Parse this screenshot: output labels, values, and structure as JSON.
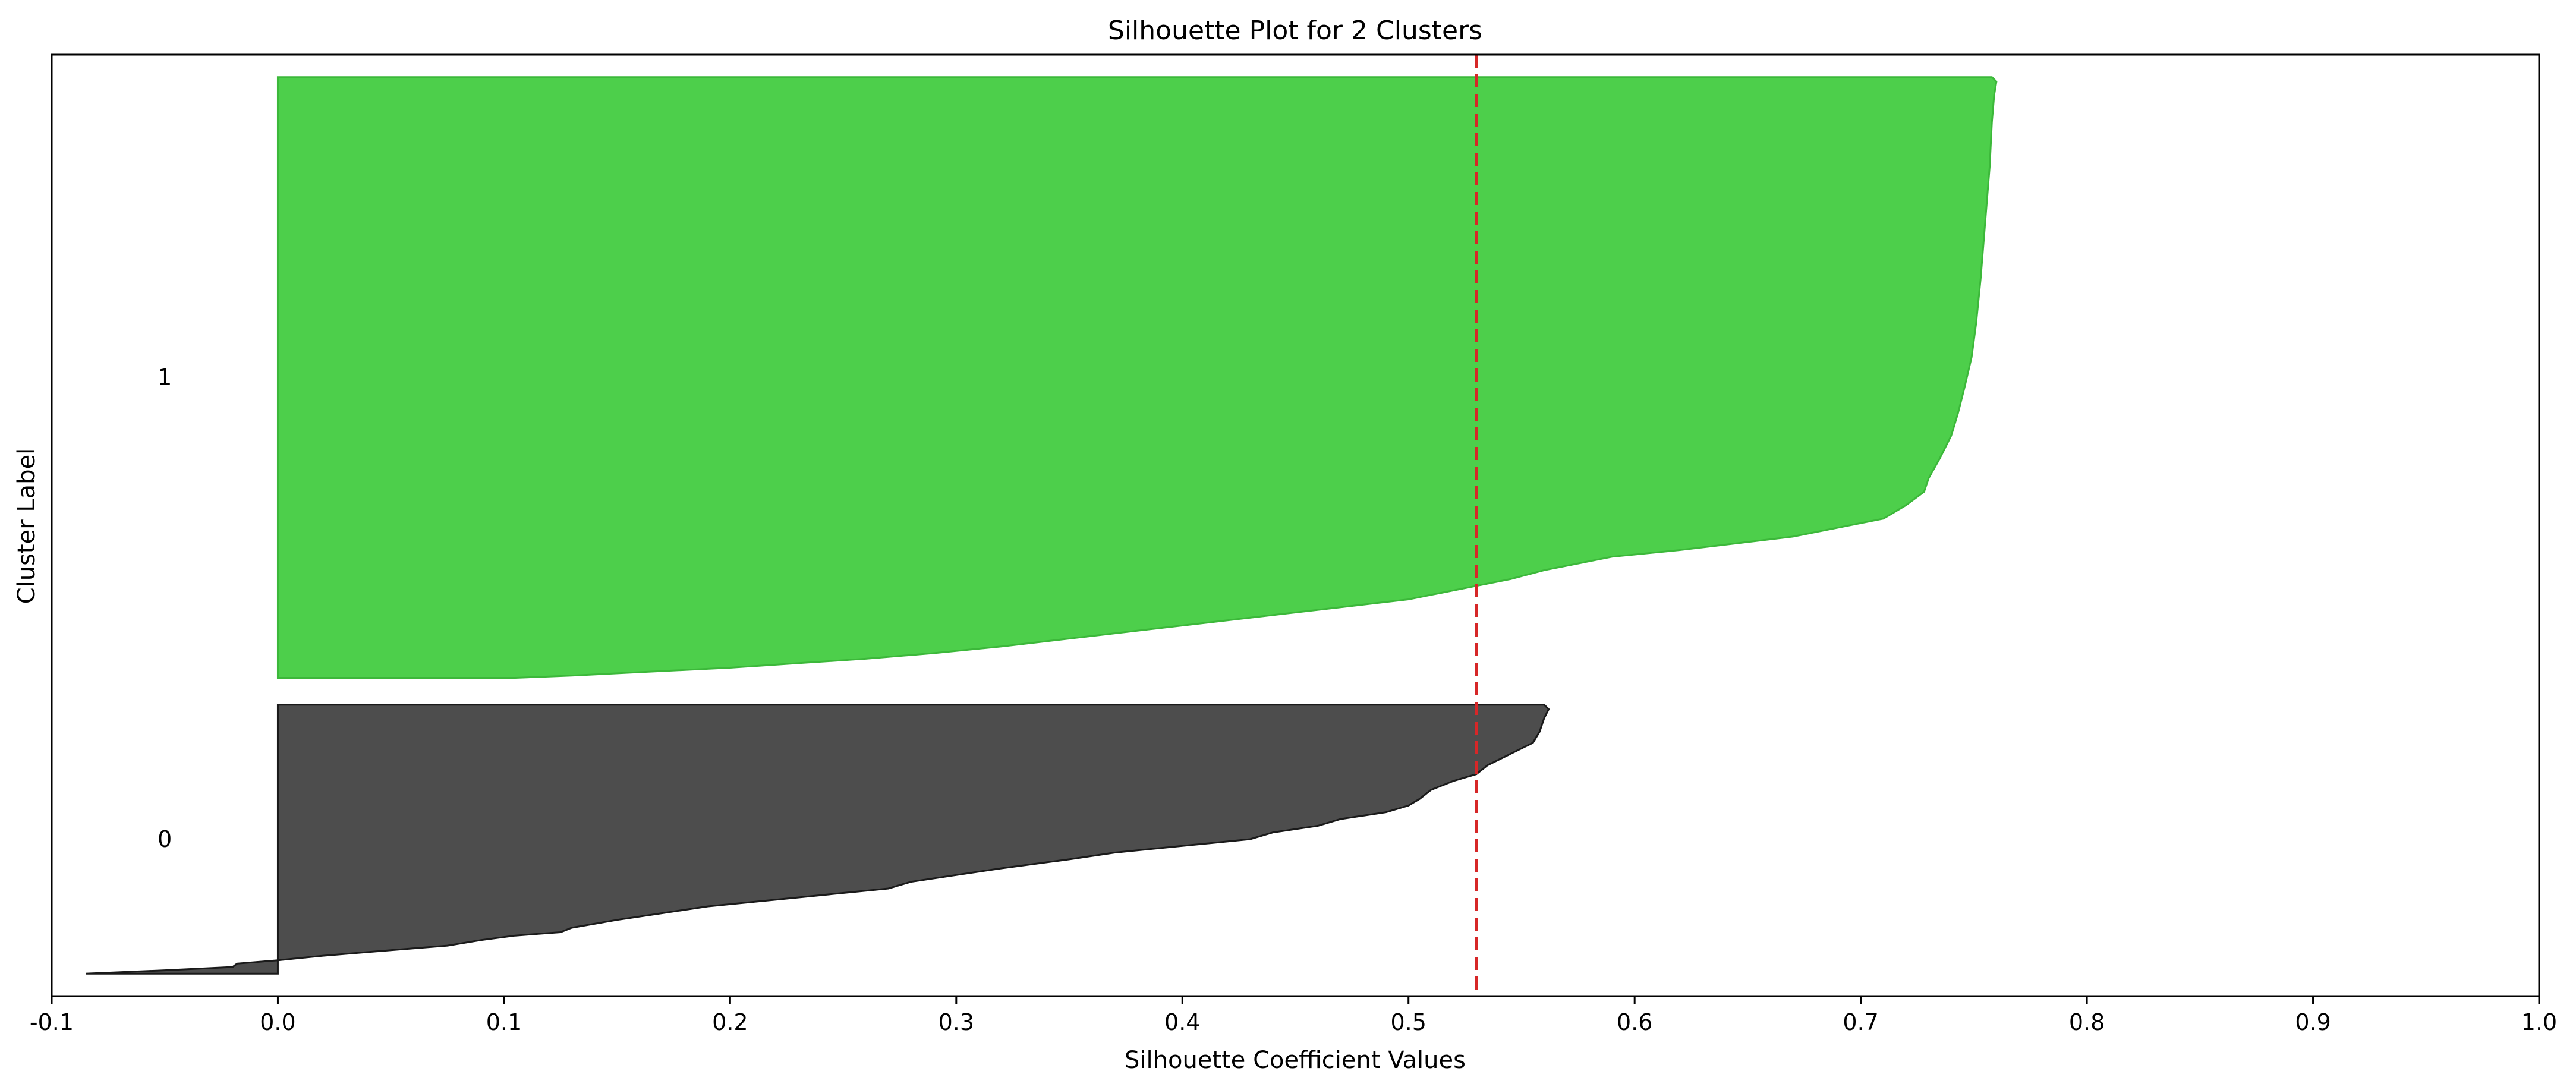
{
  "chart_data": {
    "type": "area",
    "title": "Silhouette Plot for 2 Clusters",
    "xlabel": "Silhouette Coefficient Values",
    "ylabel": "Cluster Label",
    "xlim": [
      -0.1,
      1.0
    ],
    "ylim": [
      0,
      420
    ],
    "x_ticks": [
      "-0.1",
      "0.0",
      "0.1",
      "0.2",
      "0.3",
      "0.4",
      "0.5",
      "0.6",
      "0.7",
      "0.8",
      "0.9",
      "1.0"
    ],
    "grid": false,
    "average_silhouette": 0.53,
    "average_line_color": "#d62728",
    "series": [
      {
        "label": "0",
        "color": "#4d4d4d",
        "edge_color": "#1a1a1a",
        "y_range": [
          10,
          130
        ],
        "points": [
          [
            -0.085,
            10
          ],
          [
            -0.05,
            11.5
          ],
          [
            -0.02,
            13
          ],
          [
            -0.018,
            14.5
          ],
          [
            0.0,
            16
          ],
          [
            0.02,
            18
          ],
          [
            0.05,
            20.5
          ],
          [
            0.075,
            22.5
          ],
          [
            0.09,
            25
          ],
          [
            0.105,
            27
          ],
          [
            0.125,
            28.5
          ],
          [
            0.13,
            30.5
          ],
          [
            0.15,
            34
          ],
          [
            0.17,
            37
          ],
          [
            0.19,
            40
          ],
          [
            0.21,
            42
          ],
          [
            0.23,
            44
          ],
          [
            0.25,
            46
          ],
          [
            0.27,
            48
          ],
          [
            0.28,
            51
          ],
          [
            0.3,
            54
          ],
          [
            0.32,
            57
          ],
          [
            0.35,
            61
          ],
          [
            0.37,
            64
          ],
          [
            0.4,
            67
          ],
          [
            0.43,
            70
          ],
          [
            0.44,
            73
          ],
          [
            0.46,
            76
          ],
          [
            0.47,
            79
          ],
          [
            0.49,
            82
          ],
          [
            0.5,
            85
          ],
          [
            0.505,
            88
          ],
          [
            0.51,
            92
          ],
          [
            0.52,
            96
          ],
          [
            0.53,
            99
          ],
          [
            0.535,
            103
          ],
          [
            0.545,
            108
          ],
          [
            0.555,
            113
          ],
          [
            0.558,
            118
          ],
          [
            0.56,
            124
          ],
          [
            0.562,
            128
          ],
          [
            0.56,
            130
          ]
        ]
      },
      {
        "label": "1",
        "color": "#4dcf4b",
        "edge_color": "#3cb83a",
        "y_range": [
          142,
          410
        ],
        "points": [
          [
            0.105,
            142
          ],
          [
            0.13,
            143
          ],
          [
            0.16,
            144.5
          ],
          [
            0.2,
            146.5
          ],
          [
            0.23,
            148.5
          ],
          [
            0.26,
            150.5
          ],
          [
            0.29,
            153
          ],
          [
            0.32,
            156
          ],
          [
            0.35,
            159.5
          ],
          [
            0.38,
            163
          ],
          [
            0.41,
            166.5
          ],
          [
            0.44,
            170
          ],
          [
            0.47,
            173.5
          ],
          [
            0.5,
            177
          ],
          [
            0.515,
            180
          ],
          [
            0.53,
            183
          ],
          [
            0.545,
            186
          ],
          [
            0.56,
            190
          ],
          [
            0.575,
            193
          ],
          [
            0.59,
            196
          ],
          [
            0.62,
            199
          ],
          [
            0.645,
            202
          ],
          [
            0.67,
            205
          ],
          [
            0.69,
            209
          ],
          [
            0.71,
            213
          ],
          [
            0.72,
            219
          ],
          [
            0.728,
            225
          ],
          [
            0.73,
            231
          ],
          [
            0.735,
            240
          ],
          [
            0.74,
            250
          ],
          [
            0.743,
            260
          ],
          [
            0.746,
            272
          ],
          [
            0.749,
            285
          ],
          [
            0.751,
            300
          ],
          [
            0.753,
            320
          ],
          [
            0.755,
            345
          ],
          [
            0.757,
            370
          ],
          [
            0.758,
            390
          ],
          [
            0.759,
            402
          ],
          [
            0.76,
            408
          ],
          [
            0.758,
            410
          ]
        ]
      }
    ]
  }
}
